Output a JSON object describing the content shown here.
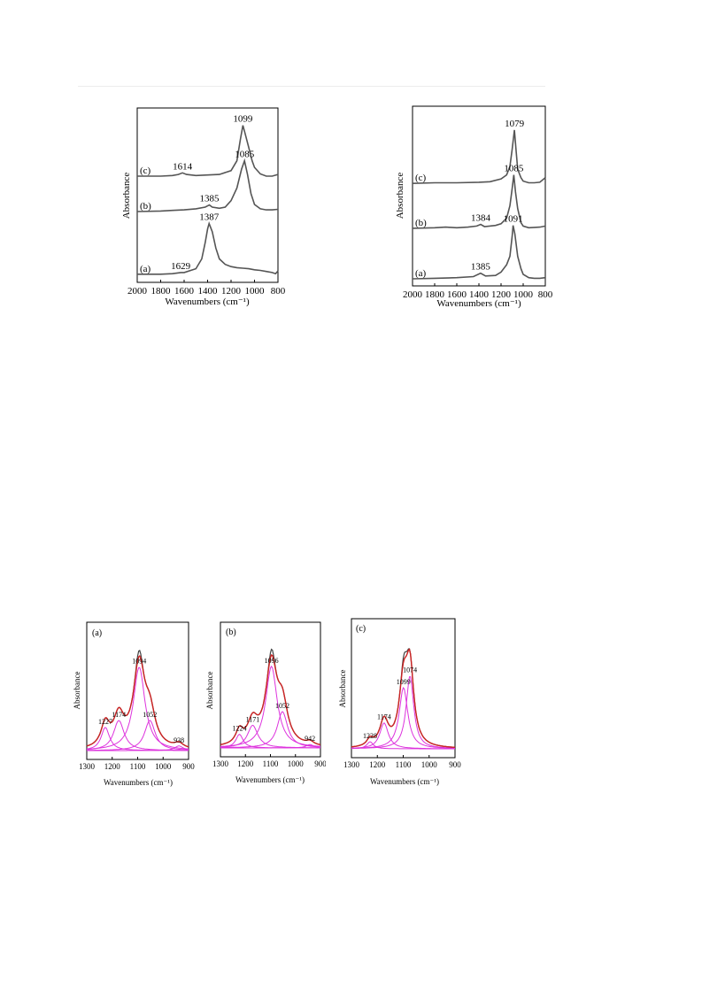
{
  "colors": {
    "spectrum": "#555555",
    "experimental": "#444444",
    "fit_total": "#cc2222",
    "component": "#dd33dd",
    "frame": "#000000"
  },
  "chart_data": [
    {
      "type": "line",
      "panel": "top-left",
      "xlabel": "Wavenumbers (cm⁻¹)",
      "ylabel": "Absorbance",
      "xlim": [
        2000,
        800
      ],
      "x_reversed": true,
      "xticks": [
        "2000",
        "1800",
        "1600",
        "1400",
        "1200",
        "1000",
        "800"
      ],
      "series": [
        {
          "name": "(a)",
          "offset": 0.0,
          "points": [
            [
              2000,
              0.02
            ],
            [
              1800,
              0.02
            ],
            [
              1700,
              0.03
            ],
            [
              1629,
              0.05
            ],
            [
              1600,
              0.05
            ],
            [
              1500,
              0.12
            ],
            [
              1450,
              0.3
            ],
            [
              1420,
              0.6
            ],
            [
              1400,
              0.85
            ],
            [
              1387,
              0.95
            ],
            [
              1360,
              0.8
            ],
            [
              1330,
              0.5
            ],
            [
              1300,
              0.3
            ],
            [
              1250,
              0.2
            ],
            [
              1200,
              0.16
            ],
            [
              1150,
              0.14
            ],
            [
              1100,
              0.13
            ],
            [
              1050,
              0.12
            ],
            [
              1000,
              0.1
            ],
            [
              950,
              0.09
            ],
            [
              900,
              0.07
            ],
            [
              850,
              0.05
            ],
            [
              820,
              0.03
            ],
            [
              800,
              0.08
            ]
          ]
        },
        {
          "name": "(b)",
          "offset": 1.15,
          "points": [
            [
              2000,
              0.02
            ],
            [
              1800,
              0.03
            ],
            [
              1700,
              0.04
            ],
            [
              1600,
              0.05
            ],
            [
              1500,
              0.07
            ],
            [
              1420,
              0.1
            ],
            [
              1385,
              0.14
            ],
            [
              1360,
              0.1
            ],
            [
              1300,
              0.08
            ],
            [
              1250,
              0.1
            ],
            [
              1200,
              0.22
            ],
            [
              1150,
              0.45
            ],
            [
              1110,
              0.8
            ],
            [
              1085,
              0.95
            ],
            [
              1060,
              0.7
            ],
            [
              1030,
              0.35
            ],
            [
              1000,
              0.15
            ],
            [
              950,
              0.07
            ],
            [
              900,
              0.05
            ],
            [
              850,
              0.05
            ],
            [
              800,
              0.06
            ]
          ]
        },
        {
          "name": "(c)",
          "offset": 1.8,
          "points": [
            [
              2000,
              0.02
            ],
            [
              1800,
              0.02
            ],
            [
              1700,
              0.03
            ],
            [
              1650,
              0.05
            ],
            [
              1614,
              0.08
            ],
            [
              1580,
              0.05
            ],
            [
              1500,
              0.03
            ],
            [
              1400,
              0.04
            ],
            [
              1300,
              0.05
            ],
            [
              1200,
              0.12
            ],
            [
              1150,
              0.3
            ],
            [
              1120,
              0.7
            ],
            [
              1099,
              0.95
            ],
            [
              1080,
              0.8
            ],
            [
              1050,
              0.55
            ],
            [
              1020,
              0.3
            ],
            [
              1000,
              0.18
            ],
            [
              950,
              0.06
            ],
            [
              900,
              0.02
            ],
            [
              850,
              0.02
            ],
            [
              800,
              0.05
            ]
          ]
        }
      ],
      "annotations": [
        {
          "text": "1099",
          "x": 1099,
          "series": "(c)"
        },
        {
          "text": "1614",
          "x": 1614,
          "series": "(c)"
        },
        {
          "text": "1085",
          "x": 1085,
          "series": "(b)"
        },
        {
          "text": "1385",
          "x": 1385,
          "series": "(b)"
        },
        {
          "text": "1387",
          "x": 1387,
          "series": "(a)"
        },
        {
          "text": "1629",
          "x": 1629,
          "series": "(a)"
        }
      ]
    },
    {
      "type": "line",
      "panel": "top-right",
      "xlabel": "Wavenumbers (cm⁻¹)",
      "ylabel": "Absorbance",
      "xlim": [
        2000,
        800
      ],
      "x_reversed": true,
      "xticks": [
        "2000",
        "1800",
        "1600",
        "1400",
        "1200",
        "1000",
        "800"
      ],
      "series": [
        {
          "name": "(a)",
          "offset": 0.0,
          "points": [
            [
              2000,
              0.0
            ],
            [
              1800,
              0.01
            ],
            [
              1600,
              0.02
            ],
            [
              1450,
              0.04
            ],
            [
              1385,
              0.1
            ],
            [
              1340,
              0.05
            ],
            [
              1250,
              0.06
            ],
            [
              1200,
              0.12
            ],
            [
              1150,
              0.25
            ],
            [
              1120,
              0.4
            ],
            [
              1100,
              0.75
            ],
            [
              1091,
              0.95
            ],
            [
              1075,
              0.8
            ],
            [
              1050,
              0.4
            ],
            [
              1020,
              0.18
            ],
            [
              1000,
              0.08
            ],
            [
              950,
              0.02
            ],
            [
              900,
              0.01
            ],
            [
              850,
              0.01
            ],
            [
              800,
              0.02
            ]
          ]
        },
        {
          "name": "(b)",
          "offset": 0.9,
          "points": [
            [
              2000,
              0.0
            ],
            [
              1800,
              0.01
            ],
            [
              1700,
              0.02
            ],
            [
              1600,
              0.01
            ],
            [
              1500,
              0.02
            ],
            [
              1420,
              0.04
            ],
            [
              1384,
              0.07
            ],
            [
              1350,
              0.03
            ],
            [
              1250,
              0.05
            ],
            [
              1200,
              0.08
            ],
            [
              1150,
              0.18
            ],
            [
              1120,
              0.4
            ],
            [
              1100,
              0.7
            ],
            [
              1085,
              0.95
            ],
            [
              1070,
              0.65
            ],
            [
              1050,
              0.35
            ],
            [
              1020,
              0.1
            ],
            [
              1000,
              0.04
            ],
            [
              950,
              0.01
            ],
            [
              850,
              0.02
            ],
            [
              800,
              0.04
            ]
          ]
        },
        {
          "name": "(c)",
          "offset": 1.7,
          "points": [
            [
              2000,
              0.0
            ],
            [
              1800,
              0.01
            ],
            [
              1600,
              0.01
            ],
            [
              1400,
              0.02
            ],
            [
              1300,
              0.03
            ],
            [
              1200,
              0.08
            ],
            [
              1150,
              0.15
            ],
            [
              1120,
              0.3
            ],
            [
              1100,
              0.6
            ],
            [
              1079,
              0.95
            ],
            [
              1065,
              0.6
            ],
            [
              1050,
              0.25
            ],
            [
              1020,
              0.1
            ],
            [
              1000,
              0.04
            ],
            [
              950,
              0.01
            ],
            [
              900,
              0.01
            ],
            [
              850,
              0.02
            ],
            [
              800,
              0.1
            ]
          ]
        }
      ],
      "annotations": [
        {
          "text": "1079",
          "x": 1079,
          "series": "(c)"
        },
        {
          "text": "1085",
          "x": 1085,
          "series": "(b)"
        },
        {
          "text": "1384",
          "x": 1384,
          "series": "(b)"
        },
        {
          "text": "1091",
          "x": 1091,
          "series": "(a)"
        },
        {
          "text": "1385",
          "x": 1385,
          "series": "(a)"
        }
      ]
    },
    {
      "type": "line",
      "panel": "bottom-a",
      "panel_label": "(a)",
      "xlabel": "Wavenumbers (cm⁻¹)",
      "ylabel": "Absorbance",
      "xlim": [
        1300,
        900
      ],
      "x_reversed": true,
      "xticks": [
        "1300",
        "1200",
        "1100",
        "1000",
        "900"
      ],
      "components": [
        {
          "center": 1227,
          "height": 0.2,
          "width": 40,
          "label": "1227"
        },
        {
          "center": 1174,
          "height": 0.26,
          "width": 50,
          "label": "1174"
        },
        {
          "center": 1094,
          "height": 0.72,
          "width": 55,
          "label": "1094"
        },
        {
          "center": 1052,
          "height": 0.26,
          "width": 50,
          "label": "1052"
        },
        {
          "center": 938,
          "height": 0.04,
          "width": 40,
          "label": "938"
        }
      ]
    },
    {
      "type": "line",
      "panel": "bottom-b",
      "panel_label": "(b)",
      "xlabel": "Wavenumbers (cm⁻¹)",
      "ylabel": "Absorbance",
      "xlim": [
        1300,
        900
      ],
      "x_reversed": true,
      "xticks": [
        "1300",
        "1200",
        "1100",
        "1000",
        "900"
      ],
      "components": [
        {
          "center": 1224,
          "height": 0.12,
          "width": 35,
          "label": "1224"
        },
        {
          "center": 1171,
          "height": 0.2,
          "width": 50,
          "label": "1171"
        },
        {
          "center": 1096,
          "height": 0.72,
          "width": 55,
          "label": "1096"
        },
        {
          "center": 1052,
          "height": 0.32,
          "width": 50,
          "label": "1052"
        },
        {
          "center": 942,
          "height": 0.03,
          "width": 35,
          "label": "942"
        }
      ]
    },
    {
      "type": "line",
      "panel": "bottom-c",
      "panel_label": "(c)",
      "xlabel": "Wavenumbers (cm⁻¹)",
      "ylabel": "Absorbance",
      "xlim": [
        1300,
        900
      ],
      "x_reversed": true,
      "xticks": [
        "1300",
        "1200",
        "1100",
        "1000",
        "900"
      ],
      "components": [
        {
          "center": 1228,
          "height": 0.06,
          "width": 30,
          "label": "1228"
        },
        {
          "center": 1174,
          "height": 0.22,
          "width": 40,
          "label": "1174"
        },
        {
          "center": 1099,
          "height": 0.52,
          "width": 40,
          "label": "1099"
        },
        {
          "center": 1074,
          "height": 0.62,
          "width": 35,
          "label": "1074"
        }
      ]
    }
  ]
}
